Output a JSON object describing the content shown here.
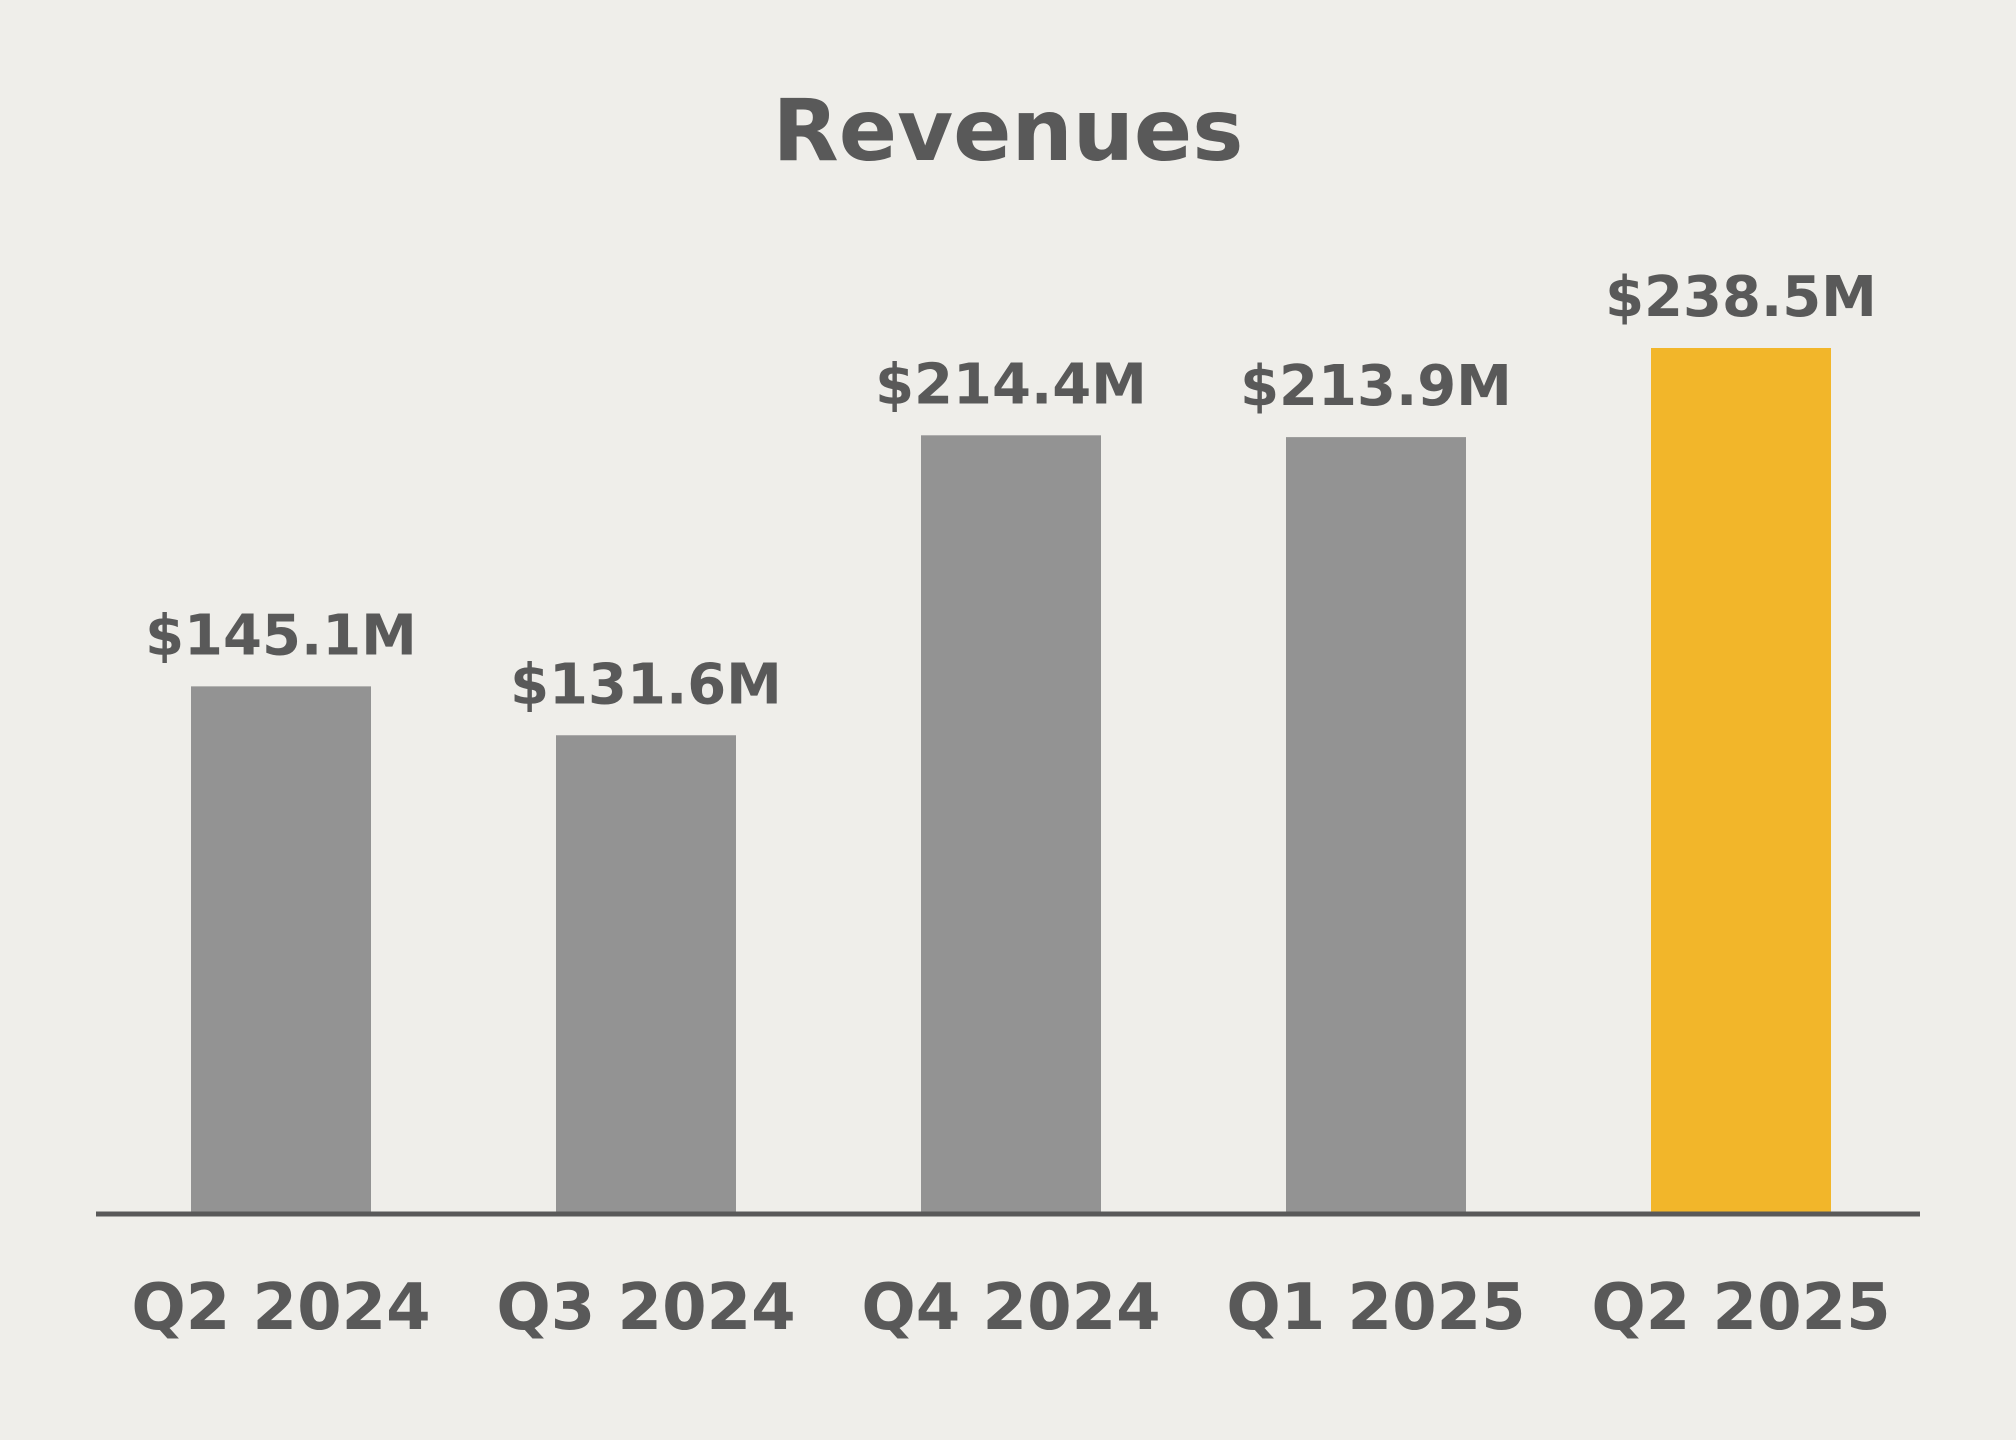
{
  "chart_data": {
    "type": "bar",
    "title": "Revenues",
    "categories": [
      "Q2 2024",
      "Q3 2024",
      "Q4 2024",
      "Q1 2025",
      "Q2 2025"
    ],
    "values": [
      145.1,
      131.6,
      214.4,
      213.9,
      238.5
    ],
    "value_labels": [
      "$145.1M",
      "$131.6M",
      "$214.4M",
      "$213.9M",
      "$238.5M"
    ],
    "unit": "$M",
    "xlabel": "",
    "ylabel": "",
    "ylim": [
      0,
      238.5
    ],
    "grid": false,
    "legend": "none",
    "colors": {
      "default_bar": "#939393",
      "highlight_bar": "#f2b62a",
      "text": "#595959",
      "axis": "#595959",
      "background": "#efeeea"
    },
    "highlight_category": "Q2 2025"
  }
}
